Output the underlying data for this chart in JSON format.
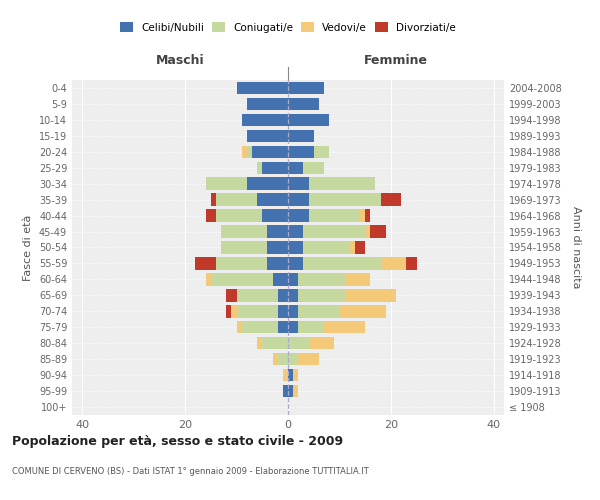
{
  "age_groups": [
    "100+",
    "95-99",
    "90-94",
    "85-89",
    "80-84",
    "75-79",
    "70-74",
    "65-69",
    "60-64",
    "55-59",
    "50-54",
    "45-49",
    "40-44",
    "35-39",
    "30-34",
    "25-29",
    "20-24",
    "15-19",
    "10-14",
    "5-9",
    "0-4"
  ],
  "birth_years": [
    "≤ 1908",
    "1909-1913",
    "1914-1918",
    "1919-1923",
    "1924-1928",
    "1929-1933",
    "1934-1938",
    "1939-1943",
    "1944-1948",
    "1949-1953",
    "1954-1958",
    "1959-1963",
    "1964-1968",
    "1969-1973",
    "1974-1978",
    "1979-1983",
    "1984-1988",
    "1989-1993",
    "1994-1998",
    "1999-2003",
    "2004-2008"
  ],
  "maschi": {
    "celibi": [
      0,
      1,
      0,
      0,
      0,
      2,
      2,
      2,
      3,
      4,
      4,
      4,
      5,
      6,
      8,
      5,
      7,
      8,
      9,
      8,
      10
    ],
    "coniugati": [
      0,
      0,
      0,
      2,
      5,
      7,
      8,
      8,
      12,
      10,
      9,
      9,
      9,
      8,
      8,
      1,
      1,
      0,
      0,
      0,
      0
    ],
    "vedovi": [
      0,
      0,
      1,
      1,
      1,
      1,
      1,
      0,
      1,
      0,
      0,
      0,
      0,
      0,
      0,
      0,
      1,
      0,
      0,
      0,
      0
    ],
    "divorziati": [
      0,
      0,
      0,
      0,
      0,
      0,
      1,
      2,
      0,
      4,
      0,
      0,
      2,
      1,
      0,
      0,
      0,
      0,
      0,
      0,
      0
    ]
  },
  "femmine": {
    "nubili": [
      0,
      1,
      1,
      0,
      0,
      2,
      2,
      2,
      2,
      3,
      3,
      3,
      4,
      4,
      4,
      3,
      5,
      5,
      8,
      6,
      7
    ],
    "coniugate": [
      0,
      0,
      0,
      2,
      4,
      5,
      8,
      9,
      9,
      15,
      9,
      12,
      10,
      14,
      13,
      4,
      3,
      0,
      0,
      0,
      0
    ],
    "vedove": [
      0,
      1,
      1,
      4,
      5,
      8,
      9,
      10,
      5,
      5,
      1,
      1,
      1,
      0,
      0,
      0,
      0,
      0,
      0,
      0,
      0
    ],
    "divorziate": [
      0,
      0,
      0,
      0,
      0,
      0,
      0,
      0,
      0,
      2,
      2,
      3,
      1,
      4,
      0,
      0,
      0,
      0,
      0,
      0,
      0
    ]
  },
  "colors": {
    "celibi_nubili": "#4472b0",
    "coniugati": "#c5d8a0",
    "vedovi": "#f5c97a",
    "divorziati": "#c0392b"
  },
  "xlim": 42,
  "title": "Popolazione per età, sesso e stato civile - 2009",
  "subtitle": "COMUNE DI CERVENO (BS) - Dati ISTAT 1° gennaio 2009 - Elaborazione TUTTITALIA.IT",
  "ylabel_left": "Fasce di età",
  "ylabel_right": "Anni di nascita",
  "xlabel_maschi": "Maschi",
  "xlabel_femmine": "Femmine",
  "bg_color": "#eeeeee",
  "grid_color": "#ffffff"
}
